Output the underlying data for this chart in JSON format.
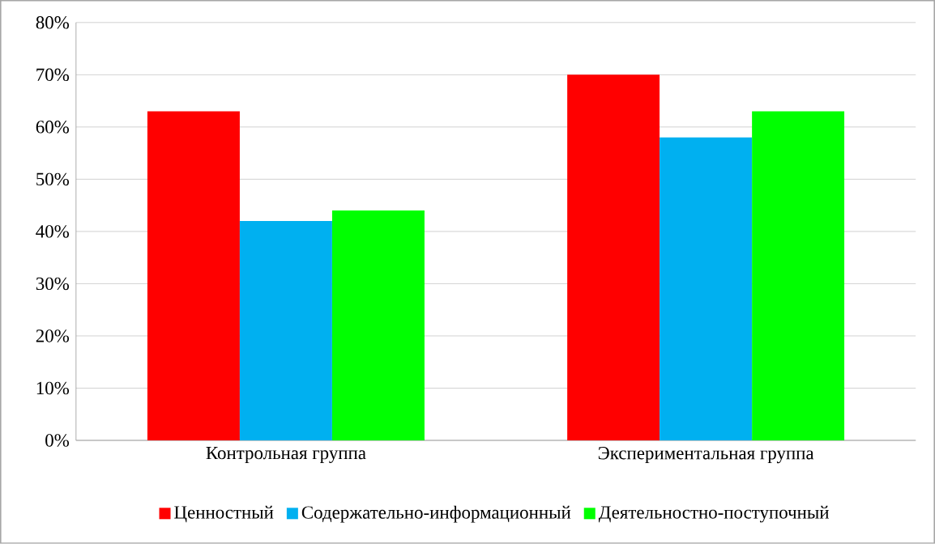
{
  "chart_data": {
    "type": "bar",
    "categories": [
      "Контрольная группа",
      "Экспериментальная группа"
    ],
    "series": [
      {
        "name": "Ценностный",
        "color": "#ff0000",
        "values": [
          63,
          70
        ]
      },
      {
        "name": "Содержательно-информационный",
        "color": "#00b0f0",
        "values": [
          42,
          58
        ]
      },
      {
        "name": "Деятельностно-поступочный",
        "color": "#00ff00",
        "values": [
          44,
          63
        ]
      }
    ],
    "ylim": [
      0,
      80
    ],
    "yticks": [
      {
        "value": 0,
        "label": "0%"
      },
      {
        "value": 10,
        "label": "10%"
      },
      {
        "value": 20,
        "label": "20%"
      },
      {
        "value": 30,
        "label": "30%"
      },
      {
        "value": 40,
        "label": "40%"
      },
      {
        "value": 50,
        "label": "50%"
      },
      {
        "value": 60,
        "label": "60%"
      },
      {
        "value": 70,
        "label": "70%"
      },
      {
        "value": 80,
        "label": "80%"
      }
    ],
    "grid": "y",
    "legend": "bottom"
  }
}
